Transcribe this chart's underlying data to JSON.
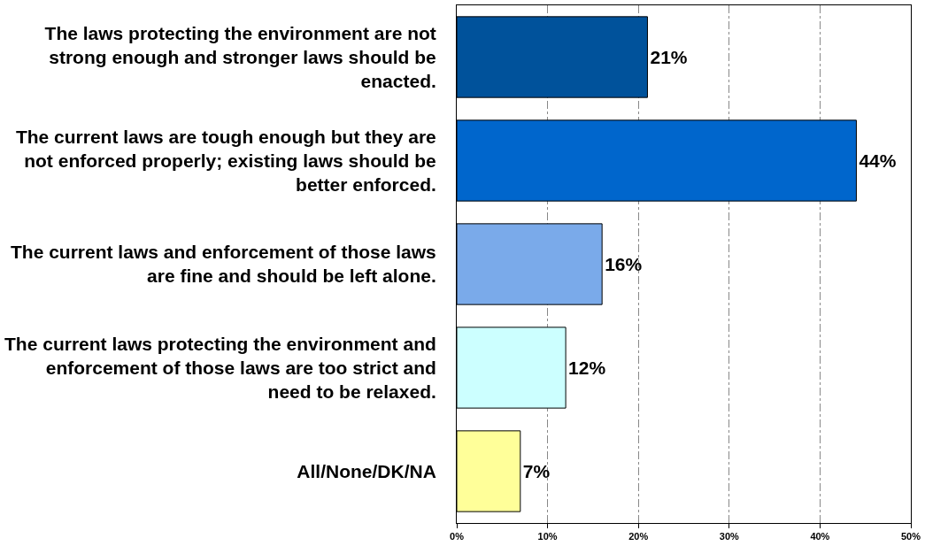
{
  "chart_data": {
    "type": "bar",
    "orientation": "horizontal",
    "categories": [
      "The laws protecting the environment are not strong enough and stronger laws should be enacted.",
      "The current laws are tough enough but they are not enforced properly; existing laws should be better enforced.",
      "The current laws and enforcement of those laws are fine and should be left alone.",
      "The current laws protecting the environment and enforcement of those laws are too strict and need to be relaxed.",
      "All/None/DK/NA"
    ],
    "values": [
      21,
      44,
      16,
      12,
      7
    ],
    "colors": [
      "#00529b",
      "#0066cc",
      "#7aaaea",
      "#ccffff",
      "#ffff99"
    ],
    "value_labels": [
      "21%",
      "44%",
      "16%",
      "12%",
      "7%"
    ],
    "xlim": [
      0,
      50
    ],
    "xticks": [
      {
        "value": 0,
        "label": "0%"
      },
      {
        "value": 10,
        "label": "10%"
      },
      {
        "value": 20,
        "label": "20%"
      },
      {
        "value": 30,
        "label": "30%"
      },
      {
        "value": 40,
        "label": "40%"
      },
      {
        "value": 50,
        "label": "50%"
      }
    ],
    "grid": "x",
    "legend": false
  }
}
